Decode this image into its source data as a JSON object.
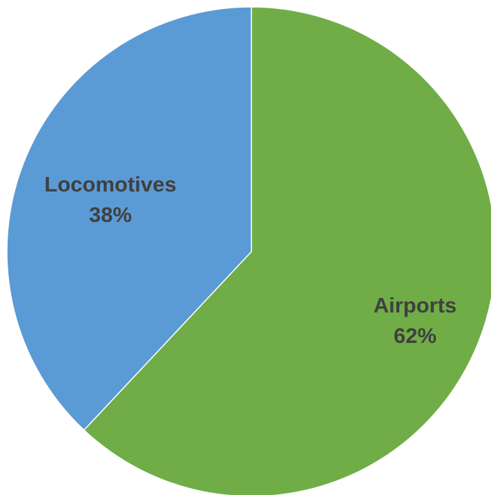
{
  "chart_data": {
    "type": "pie",
    "title": "",
    "slices": [
      {
        "name": "Airports",
        "value": 62,
        "value_label": "62%",
        "color": "#70ad47"
      },
      {
        "name": "Locomotives",
        "value": 38,
        "value_label": "38%",
        "color": "#5b9bd5"
      }
    ],
    "start_angle": "12 o'clock",
    "direction": "clockwise",
    "legend": "none",
    "data_labels": "category name and percentage"
  }
}
